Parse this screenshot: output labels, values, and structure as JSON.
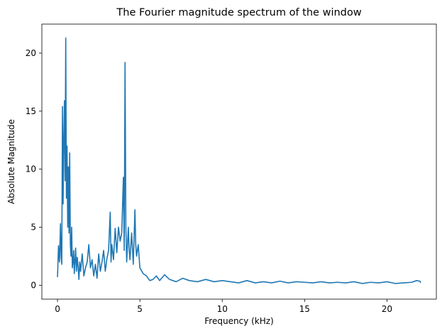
{
  "chart_data": {
    "type": "line",
    "title": "The Fourier magnitude spectrum of the window",
    "xlabel": "Frequency (kHz)",
    "ylabel": "Absolute Magnitude",
    "xlim": [
      -0.95,
      23.0
    ],
    "ylim": [
      -1.2,
      22.5
    ],
    "xticks": [
      0,
      5,
      10,
      15,
      20
    ],
    "yticks": [
      0,
      5,
      10,
      15,
      20
    ],
    "grid": false,
    "legend": "none",
    "series": [
      {
        "color": "#1f77b4",
        "x": [
          0.0,
          0.06,
          0.12,
          0.18,
          0.22,
          0.26,
          0.3,
          0.34,
          0.38,
          0.42,
          0.46,
          0.5,
          0.54,
          0.58,
          0.62,
          0.66,
          0.7,
          0.74,
          0.78,
          0.82,
          0.86,
          0.9,
          0.94,
          0.98,
          1.02,
          1.06,
          1.1,
          1.15,
          1.2,
          1.25,
          1.3,
          1.35,
          1.4,
          1.5,
          1.6,
          1.7,
          1.8,
          1.9,
          2.0,
          2.1,
          2.2,
          2.3,
          2.4,
          2.5,
          2.6,
          2.7,
          2.8,
          2.9,
          3.0,
          3.1,
          3.2,
          3.25,
          3.3,
          3.4,
          3.5,
          3.6,
          3.7,
          3.8,
          3.9,
          4.0,
          4.05,
          4.1,
          4.15,
          4.2,
          4.25,
          4.3,
          4.35,
          4.4,
          4.5,
          4.6,
          4.7,
          4.75,
          4.8,
          4.9,
          5.0,
          5.2,
          5.4,
          5.6,
          5.8,
          6.0,
          6.2,
          6.5,
          6.8,
          7.2,
          7.6,
          8.0,
          8.5,
          9.0,
          9.5,
          10.0,
          10.5,
          11.0,
          11.5,
          12.0,
          12.5,
          13.0,
          13.5,
          14.0,
          14.5,
          15.0,
          15.5,
          16.0,
          16.5,
          17.0,
          17.5,
          18.0,
          18.5,
          19.0,
          19.5,
          20.0,
          20.5,
          21.0,
          21.5,
          21.8,
          22.0,
          22.05
        ],
        "y": [
          0.7,
          3.4,
          2.0,
          5.3,
          2.5,
          1.8,
          15.4,
          7.0,
          12.6,
          15.9,
          9.0,
          21.3,
          7.5,
          12.0,
          5.0,
          10.2,
          4.5,
          11.4,
          3.5,
          2.5,
          5.0,
          1.5,
          2.0,
          3.0,
          1.0,
          2.0,
          3.2,
          1.2,
          2.4,
          1.6,
          0.5,
          2.0,
          1.2,
          2.7,
          0.8,
          1.5,
          2.0,
          3.5,
          1.5,
          2.2,
          0.8,
          1.8,
          0.6,
          2.7,
          1.2,
          2.0,
          3.0,
          1.2,
          2.3,
          3.0,
          6.3,
          2.0,
          3.5,
          2.2,
          4.9,
          2.8,
          5.0,
          3.8,
          4.5,
          9.3,
          3.0,
          19.2,
          5.0,
          2.0,
          3.5,
          5.0,
          3.0,
          2.2,
          4.5,
          1.8,
          6.5,
          3.5,
          2.5,
          3.5,
          1.5,
          1.0,
          0.8,
          0.4,
          0.5,
          0.8,
          0.4,
          0.9,
          0.5,
          0.3,
          0.6,
          0.4,
          0.3,
          0.5,
          0.3,
          0.4,
          0.3,
          0.2,
          0.4,
          0.2,
          0.3,
          0.2,
          0.35,
          0.2,
          0.3,
          0.25,
          0.2,
          0.3,
          0.2,
          0.25,
          0.2,
          0.3,
          0.15,
          0.25,
          0.2,
          0.3,
          0.15,
          0.2,
          0.25,
          0.4,
          0.35,
          0.2
        ]
      }
    ]
  }
}
